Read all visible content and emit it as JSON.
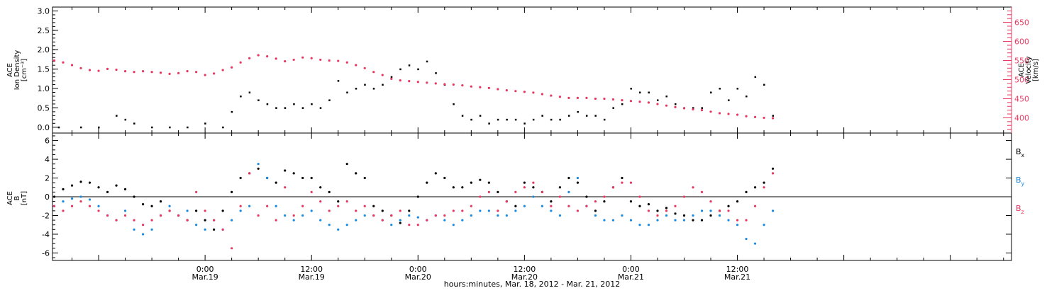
{
  "colors": {
    "black": "#000000",
    "red": "#e8375f",
    "blue": "#1a8ae0",
    "frame": "#000000"
  },
  "x_axis": {
    "title": "hours:minutes, Mar. 18, 2012 - Mar. 21, 2012",
    "range_hours": [
      -17.2,
      90.9
    ],
    "ticks": [
      {
        "h": 0,
        "time": "0:00",
        "date": "Mar.19"
      },
      {
        "h": 12,
        "time": "12:00",
        "date": "Mar.19"
      },
      {
        "h": 24,
        "time": "0:00",
        "date": "Mar.20"
      },
      {
        "h": 36,
        "time": "12:00",
        "date": "Mar.20"
      },
      {
        "h": 48,
        "time": "0:00",
        "date": "Mar.21"
      },
      {
        "h": 60,
        "time": "12:00",
        "date": "Mar.21"
      }
    ]
  },
  "panel1": {
    "left_label": [
      "ACE",
      "Ion Density",
      "[cm⁻³]"
    ],
    "right_label": [
      "ACE",
      "Velocity",
      "[km/s]"
    ],
    "left_ticks": [
      "0.0",
      "0.5",
      "1.0",
      "1.5",
      "2.0",
      "2.5",
      "3.0"
    ],
    "right_ticks": [
      "400",
      "450",
      "500",
      "550",
      "600",
      "650"
    ]
  },
  "panel2": {
    "left_label": [
      "ACE",
      "B",
      "[nT]"
    ],
    "left_ticks": [
      "-6",
      "-4",
      "-2",
      "0",
      "2",
      "4",
      "6"
    ],
    "legend": [
      {
        "label": "B",
        "sub": "x",
        "color": "#000000"
      },
      {
        "label": "B",
        "sub": "y",
        "color": "#1a8ae0"
      },
      {
        "label": "B",
        "sub": "z",
        "color": "#e8375f"
      }
    ]
  },
  "chart_data": [
    {
      "type": "scatter",
      "title": "",
      "xlabel": "hours:minutes, Mar. 18, 2012 - Mar. 21, 2012",
      "ylabel": "ACE Ion Density [cm⁻³]",
      "y2label": "ACE Velocity [km/s]",
      "xlim": [
        -17.2,
        90.9
      ],
      "ylim": [
        -0.15,
        3.1
      ],
      "y2lim": [
        360,
        690
      ],
      "grid": false,
      "series": [
        {
          "name": "ACE Ion Density",
          "axis": "left",
          "color": "#000000",
          "x": [
            -16.5,
            -14,
            -12,
            -10,
            -9,
            -8,
            -6,
            -4,
            -2,
            0,
            2,
            3,
            4,
            5,
            6,
            7,
            8,
            9,
            10,
            11,
            12,
            13,
            14,
            15,
            16,
            17,
            18,
            19,
            20,
            21,
            22,
            23,
            24,
            25,
            26,
            27,
            28,
            29,
            30,
            31,
            32,
            33,
            34,
            35,
            36,
            37,
            38,
            39,
            40,
            41,
            42,
            43,
            44,
            45,
            46,
            47,
            48,
            49,
            50,
            51,
            52,
            53,
            54,
            55,
            56,
            57,
            58,
            59,
            60,
            61,
            62,
            63,
            64
          ],
          "y": [
            0.0,
            0.0,
            0.0,
            0.3,
            0.2,
            0.1,
            0.0,
            0.0,
            0.0,
            0.1,
            0.0,
            0.4,
            0.8,
            0.9,
            0.7,
            0.6,
            0.5,
            0.5,
            0.6,
            0.5,
            0.6,
            0.5,
            0.7,
            1.2,
            0.9,
            1.0,
            1.1,
            1.0,
            1.1,
            1.3,
            1.5,
            1.6,
            1.5,
            1.7,
            1.4,
            1.1,
            0.6,
            0.3,
            0.2,
            0.3,
            0.1,
            0.2,
            0.2,
            0.2,
            0.1,
            0.2,
            0.3,
            0.2,
            0.2,
            0.3,
            0.4,
            0.3,
            0.3,
            0.2,
            0.5,
            0.6,
            1.0,
            0.9,
            0.9,
            0.7,
            0.8,
            0.6,
            0.5,
            0.5,
            0.5,
            0.9,
            1.0,
            0.7,
            1.0,
            0.8,
            1.3,
            1.1,
            0.3
          ]
        },
        {
          "name": "ACE Velocity",
          "axis": "right",
          "color": "#e8375f",
          "x": [
            -17,
            -16,
            -15,
            -14,
            -13,
            -12,
            -11,
            -10,
            -9,
            -8,
            -7,
            -6,
            -5,
            -4,
            -3,
            -2,
            -1,
            0,
            1,
            2,
            3,
            4,
            5,
            6,
            7,
            8,
            9,
            10,
            11,
            12,
            13,
            14,
            15,
            16,
            17,
            18,
            19,
            20,
            21,
            22,
            23,
            24,
            25,
            26,
            27,
            28,
            29,
            30,
            31,
            32,
            33,
            34,
            35,
            36,
            37,
            38,
            39,
            40,
            41,
            42,
            43,
            44,
            45,
            46,
            47,
            48,
            49,
            50,
            51,
            52,
            53,
            54,
            55,
            56,
            57,
            58,
            59,
            60,
            61,
            62,
            63,
            64
          ],
          "y": [
            550,
            545,
            538,
            530,
            525,
            523,
            528,
            526,
            522,
            520,
            522,
            520,
            518,
            515,
            517,
            522,
            520,
            512,
            516,
            525,
            532,
            545,
            556,
            564,
            561,
            555,
            548,
            552,
            558,
            556,
            552,
            550,
            549,
            545,
            538,
            530,
            520,
            512,
            502,
            498,
            496,
            494,
            492,
            490,
            488,
            487,
            485,
            482,
            480,
            478,
            475,
            472,
            470,
            468,
            466,
            462,
            458,
            455,
            452,
            452,
            452,
            450,
            450,
            448,
            446,
            444,
            442,
            440,
            436,
            432,
            428,
            425,
            422,
            420,
            416,
            412,
            410,
            408,
            404,
            402,
            400,
            399
          ]
        }
      ]
    },
    {
      "type": "scatter",
      "title": "",
      "xlabel": "hours:minutes, Mar. 18, 2012 - Mar. 21, 2012",
      "ylabel": "ACE B [nT]",
      "xlim": [
        -17.2,
        90.9
      ],
      "ylim": [
        -6.8,
        6.8
      ],
      "grid": false,
      "series": [
        {
          "name": "Bx",
          "color": "#000000",
          "x": [
            -17,
            -16,
            -15,
            -14,
            -13,
            -12,
            -11,
            -10,
            -9,
            -8,
            -7,
            -6,
            -5,
            -4,
            -3,
            -2,
            -1,
            0,
            1,
            2,
            3,
            4,
            5,
            6,
            7,
            8,
            9,
            10,
            11,
            12,
            13,
            14,
            15,
            16,
            17,
            18,
            19,
            20,
            21,
            22,
            23,
            24,
            25,
            26,
            27,
            28,
            29,
            30,
            31,
            32,
            33,
            34,
            35,
            36,
            37,
            38,
            39,
            40,
            41,
            42,
            43,
            44,
            45,
            46,
            47,
            48,
            49,
            50,
            51,
            52,
            53,
            54,
            55,
            56,
            57,
            58,
            59,
            60,
            61,
            62,
            63,
            64
          ],
          "y": [
            0.0,
            0.8,
            1.2,
            1.6,
            1.5,
            1.0,
            0.5,
            1.2,
            0.8,
            0.0,
            -0.8,
            -1.0,
            -0.5,
            -1.5,
            -2.0,
            -2.5,
            -1.5,
            -2.5,
            -3.5,
            -1.5,
            0.5,
            2.0,
            2.5,
            3.0,
            2.0,
            1.5,
            2.8,
            2.5,
            2.0,
            2.0,
            1.0,
            0.5,
            -0.5,
            3.5,
            2.5,
            2.0,
            -1.0,
            -1.5,
            -2.0,
            -2.8,
            -1.5,
            0.0,
            1.5,
            2.5,
            2.0,
            1.0,
            1.0,
            1.5,
            1.8,
            1.5,
            0.5,
            -0.5,
            -1.0,
            1.5,
            1.0,
            0.5,
            -0.5,
            1.0,
            2.0,
            1.5,
            0.0,
            -1.5,
            -0.5,
            1.0,
            2.0,
            -0.5,
            -1.0,
            -0.8,
            -1.5,
            -1.2,
            -1.8,
            -2.0,
            -2.5,
            -2.5,
            -2.0,
            -1.5,
            -1.0,
            -0.5,
            0.5,
            1.0,
            1.5,
            3.0
          ]
        },
        {
          "name": "By",
          "color": "#1a8ae0",
          "x": [
            -17,
            -16,
            -15,
            -14,
            -13,
            -12,
            -11,
            -10,
            -9,
            -8,
            -7,
            -6,
            -5,
            -4,
            -3,
            -2,
            -1,
            0,
            1,
            2,
            3,
            4,
            5,
            6,
            7,
            8,
            9,
            10,
            11,
            12,
            13,
            14,
            15,
            16,
            17,
            18,
            19,
            20,
            21,
            22,
            23,
            24,
            25,
            26,
            27,
            28,
            29,
            30,
            31,
            32,
            33,
            34,
            35,
            36,
            37,
            38,
            39,
            40,
            41,
            42,
            43,
            44,
            45,
            46,
            47,
            48,
            49,
            50,
            51,
            52,
            53,
            54,
            55,
            56,
            57,
            58,
            59,
            60,
            61,
            62,
            63,
            64
          ],
          "y": [
            -1.0,
            -0.5,
            -0.2,
            0.0,
            -0.3,
            -1.0,
            -2.0,
            -2.5,
            -1.5,
            -3.5,
            -4.0,
            -3.5,
            -2.0,
            -1.0,
            -2.0,
            -1.5,
            -3.0,
            -3.5,
            -2.5,
            -3.5,
            -2.5,
            -1.5,
            -1.0,
            3.5,
            2.0,
            -1.0,
            -2.0,
            -2.5,
            -2.0,
            -1.5,
            -2.5,
            -3.0,
            -3.5,
            -3.0,
            -2.5,
            -2.0,
            -2.0,
            -2.5,
            -3.0,
            -2.5,
            -2.0,
            -2.2,
            -2.5,
            -2.0,
            -2.5,
            -3.0,
            -2.5,
            -2.0,
            -1.5,
            -1.5,
            -2.0,
            -2.0,
            -1.5,
            -1.0,
            0.0,
            -1.0,
            -1.5,
            -2.0,
            0.5,
            2.0,
            -1.0,
            -2.0,
            -2.5,
            -2.5,
            -2.0,
            -2.5,
            -3.0,
            -3.0,
            -2.5,
            -2.0,
            -2.5,
            -2.5,
            -2.0,
            -1.5,
            -1.5,
            -2.0,
            -2.5,
            -3.0,
            -4.5,
            -5.0,
            -3.0,
            -1.5
          ]
        },
        {
          "name": "Bz",
          "color": "#e8375f",
          "x": [
            -17,
            -16,
            -15,
            -14,
            -13,
            -12,
            -11,
            -10,
            -9,
            -8,
            -7,
            -6,
            -5,
            -4,
            -3,
            -2,
            -1,
            0,
            1,
            2,
            3,
            4,
            5,
            6,
            7,
            8,
            9,
            10,
            11,
            12,
            13,
            14,
            15,
            16,
            17,
            18,
            19,
            20,
            21,
            22,
            23,
            24,
            25,
            26,
            27,
            28,
            29,
            30,
            31,
            32,
            33,
            34,
            35,
            36,
            37,
            38,
            39,
            40,
            41,
            42,
            43,
            44,
            45,
            46,
            47,
            48,
            49,
            50,
            51,
            52,
            53,
            54,
            55,
            56,
            57,
            58,
            59,
            60,
            61,
            62,
            63,
            64
          ],
          "y": [
            -1.0,
            -1.5,
            -1.0,
            -0.5,
            -1.0,
            -1.5,
            -2.0,
            -2.5,
            -2.0,
            -2.5,
            -3.0,
            -2.5,
            -2.0,
            -1.5,
            -2.0,
            -2.5,
            0.5,
            -1.5,
            -2.5,
            -3.5,
            -5.5,
            -1.0,
            2.5,
            -2.0,
            -1.0,
            -2.5,
            1.0,
            -2.0,
            -1.0,
            0.5,
            -0.5,
            -1.5,
            -1.0,
            -0.5,
            -1.5,
            -1.0,
            -2.0,
            -2.5,
            -2.0,
            -1.5,
            -3.0,
            -3.0,
            -2.5,
            -2.0,
            -2.0,
            -1.5,
            -1.5,
            -1.0,
            0.0,
            0.5,
            -1.5,
            -0.5,
            0.5,
            1.0,
            1.5,
            0.5,
            -1.0,
            0.0,
            -1.0,
            -1.5,
            -1.0,
            -0.5,
            0.0,
            1.0,
            1.5,
            1.5,
            0.0,
            -1.5,
            -2.0,
            -1.5,
            -1.0,
            0.0,
            1.0,
            0.5,
            -0.5,
            -1.5,
            -1.5,
            -2.5,
            -2.5,
            -1.0,
            1.0,
            2.5
          ]
        }
      ]
    }
  ]
}
